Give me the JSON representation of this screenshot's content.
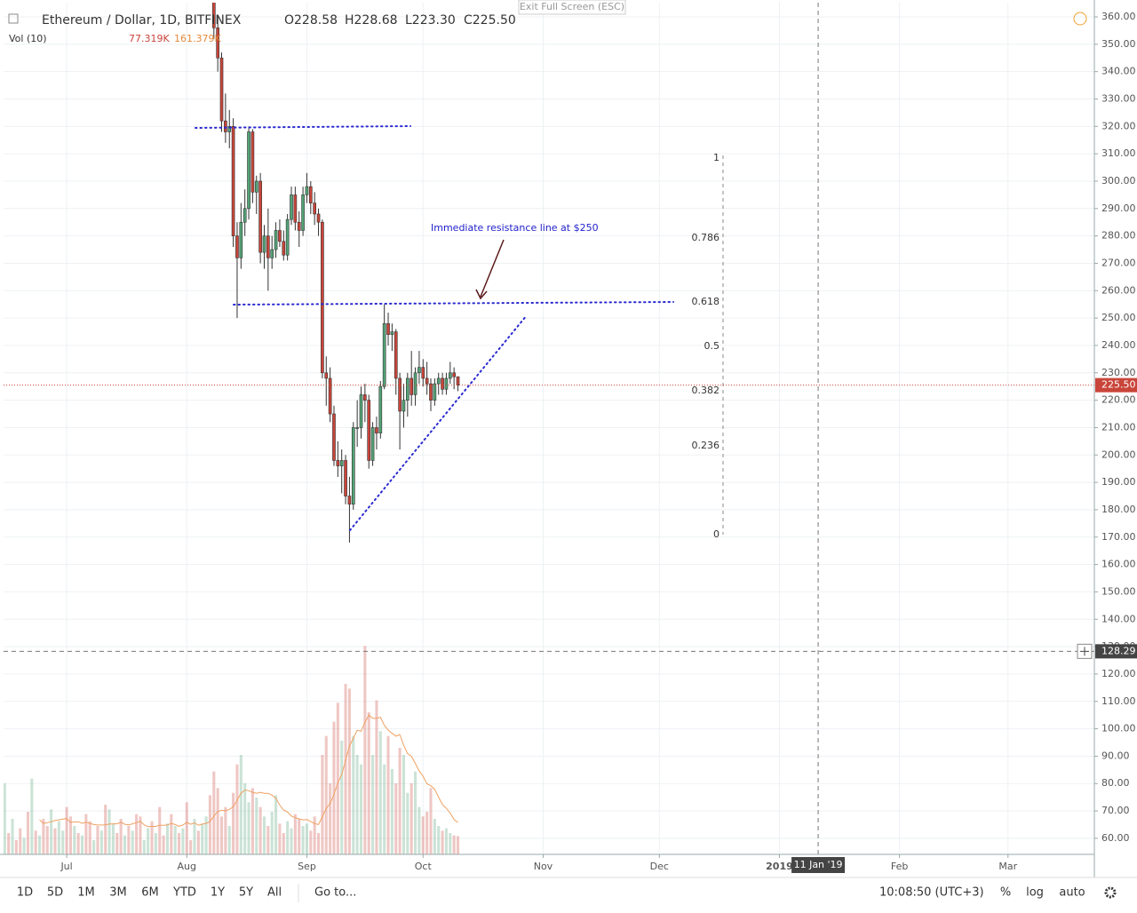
{
  "header": {
    "symbol": "Ethereum / Dollar, 1D, BITFINEX",
    "open": "O228.58",
    "high": "H228.68",
    "low": "L223.30",
    "close": "C225.50",
    "volume_label": "Vol (10)",
    "volume_value": "77.319K",
    "volume_ma_value": "161.379K",
    "exit_full_screen": "Exit Full Screen (ESC)"
  },
  "chart_data": {
    "type": "candlestick",
    "xlim": [
      -16.3,
      265.3
    ],
    "xticks": [
      {
        "value": 0,
        "label": "Jul"
      },
      {
        "value": 31,
        "label": "Aug"
      },
      {
        "value": 62,
        "label": "Sep"
      },
      {
        "value": 92,
        "label": "Oct"
      },
      {
        "value": 123,
        "label": "Nov"
      },
      {
        "value": 153,
        "label": "Dec"
      },
      {
        "value": 184,
        "label": "2019"
      },
      {
        "value": 215,
        "label": "Feb"
      },
      {
        "value": 243,
        "label": "Mar"
      }
    ],
    "ylim": [
      54.13,
      365.19
    ],
    "yticks": [
      {
        "value": 60,
        "label": "60.00"
      },
      {
        "value": 70,
        "label": "70.00"
      },
      {
        "value": 80,
        "label": "80.00"
      },
      {
        "value": 90,
        "label": "90.00"
      },
      {
        "value": 100,
        "label": "100.00"
      },
      {
        "value": 110,
        "label": "110.00"
      },
      {
        "value": 120,
        "label": "120.00"
      },
      {
        "value": 130,
        "label": "130.00"
      },
      {
        "value": 140,
        "label": "140.00"
      },
      {
        "value": 150,
        "label": "150.00"
      },
      {
        "value": 160,
        "label": "160.00"
      },
      {
        "value": 170,
        "label": "170.00"
      },
      {
        "value": 180,
        "label": "180.00"
      },
      {
        "value": 190,
        "label": "190.00"
      },
      {
        "value": 200,
        "label": "200.00"
      },
      {
        "value": 210,
        "label": "210.00"
      },
      {
        "value": 220,
        "label": "220.00"
      },
      {
        "value": 230,
        "label": "230.00"
      },
      {
        "value": 240,
        "label": "240.00"
      },
      {
        "value": 250,
        "label": "250.00"
      },
      {
        "value": 260,
        "label": "260.00"
      },
      {
        "value": 270,
        "label": "270.00"
      },
      {
        "value": 280,
        "label": "280.00"
      },
      {
        "value": 290,
        "label": "290.00"
      },
      {
        "value": 300,
        "label": "300.00"
      },
      {
        "value": 310,
        "label": "310.00"
      },
      {
        "value": 320,
        "label": "320.00"
      },
      {
        "value": 330,
        "label": "330.00"
      },
      {
        "value": 340,
        "label": "340.00"
      },
      {
        "value": 350,
        "label": "350.00"
      },
      {
        "value": 360,
        "label": "360.00"
      }
    ],
    "grid": true,
    "up_color": "#53a376",
    "down_color": "#c9453a",
    "first_day": 38,
    "candles": [
      [
        366,
        372,
        352,
        356
      ],
      [
        356,
        360,
        340,
        345
      ],
      [
        345,
        347,
        318,
        322
      ],
      [
        322,
        332,
        314,
        318
      ],
      [
        318,
        326,
        312,
        320
      ],
      [
        320,
        323,
        276,
        280
      ],
      [
        280,
        285,
        250,
        272
      ],
      [
        272,
        292,
        268,
        285
      ],
      [
        285,
        297,
        280,
        290
      ],
      [
        290,
        320,
        286,
        318
      ],
      [
        318,
        319,
        292,
        296
      ],
      [
        296,
        302,
        288,
        300
      ],
      [
        300,
        303,
        270,
        274
      ],
      [
        274,
        284,
        268,
        280
      ],
      [
        280,
        290,
        260,
        272
      ],
      [
        272,
        280,
        268,
        275
      ],
      [
        275,
        285,
        272,
        282
      ],
      [
        282,
        286,
        276,
        278
      ],
      [
        278,
        282,
        271,
        273
      ],
      [
        273,
        288,
        271,
        286
      ],
      [
        286,
        298,
        284,
        295
      ],
      [
        295,
        298,
        282,
        285
      ],
      [
        285,
        289,
        276,
        282
      ],
      [
        282,
        298,
        280,
        295
      ],
      [
        295,
        303,
        292,
        298
      ],
      [
        298,
        300,
        288,
        292
      ],
      [
        292,
        296,
        284,
        288
      ],
      [
        288,
        290,
        280,
        285
      ],
      [
        285,
        286,
        228,
        230
      ],
      [
        230,
        236,
        218,
        228
      ],
      [
        228,
        232,
        212,
        215
      ],
      [
        215,
        218,
        196,
        198
      ],
      [
        198,
        205,
        192,
        196
      ],
      [
        196,
        202,
        186,
        198
      ],
      [
        198,
        200,
        182,
        185
      ],
      [
        185,
        192,
        168,
        182
      ],
      [
        182,
        212,
        180,
        210
      ],
      [
        210,
        220,
        203,
        210
      ],
      [
        210,
        225,
        206,
        222
      ],
      [
        222,
        226,
        212,
        220
      ],
      [
        220,
        222,
        195,
        198
      ],
      [
        198,
        212,
        196,
        210
      ],
      [
        210,
        214,
        202,
        208
      ],
      [
        208,
        227,
        206,
        225
      ],
      [
        225,
        255,
        224,
        248
      ],
      [
        248,
        252,
        240,
        244
      ],
      [
        244,
        248,
        238,
        245
      ],
      [
        245,
        246,
        222,
        228
      ],
      [
        228,
        230,
        202,
        216
      ],
      [
        216,
        226,
        210,
        220
      ],
      [
        220,
        230,
        214,
        228
      ],
      [
        228,
        238,
        218,
        222
      ],
      [
        222,
        232,
        218,
        230
      ],
      [
        230,
        238,
        226,
        232
      ],
      [
        232,
        235,
        225,
        228
      ],
      [
        228,
        234,
        222,
        226
      ],
      [
        226,
        228,
        216,
        220
      ],
      [
        220,
        228,
        218,
        226
      ],
      [
        226,
        230,
        222,
        228
      ],
      [
        228,
        230,
        222,
        224
      ],
      [
        224,
        230,
        222,
        228
      ],
      [
        228,
        234,
        226,
        230
      ],
      [
        230,
        232,
        224,
        228.58
      ],
      [
        228.58,
        228.68,
        223.3,
        225.5
      ]
    ],
    "volume_first_day": -16,
    "volume_max": 900,
    "volume_ma_length": 10,
    "volume_ma_color": "#f0a060",
    "early_volume_up": [
      1,
      0,
      1,
      0,
      0,
      1,
      0,
      1,
      0,
      1,
      0,
      0,
      1,
      0,
      1,
      1,
      0,
      0,
      1,
      0,
      1,
      0,
      0,
      1,
      0,
      1,
      0,
      1,
      1,
      0,
      0,
      1,
      0,
      1,
      0,
      0,
      1,
      1,
      0,
      1,
      0,
      0,
      1,
      0,
      1,
      0,
      1,
      0,
      0,
      1,
      0,
      1,
      1,
      0
    ],
    "volumes": [
      300,
      90,
      150,
      60,
      110,
      70,
      180,
      320,
      100,
      80,
      150,
      120,
      190,
      110,
      140,
      100,
      200,
      160,
      120,
      90,
      80,
      170,
      140,
      60,
      120,
      100,
      210,
      190,
      130,
      90,
      150,
      80,
      120,
      100,
      170,
      160,
      60,
      110,
      140,
      90,
      200,
      80,
      130,
      170,
      120,
      90,
      110,
      220,
      60,
      150,
      100,
      130,
      160,
      250,
      350,
      280,
      160,
      200,
      120,
      260,
      380,
      420,
      300,
      220,
      280,
      240,
      200,
      160,
      120,
      180,
      250,
      130,
      90,
      140,
      110,
      170,
      150,
      120,
      130,
      100,
      160,
      90,
      420,
      500,
      300,
      560,
      640,
      480,
      720,
      700,
      500,
      420,
      380,
      880,
      600,
      420,
      650,
      520,
      380,
      500,
      360,
      300,
      450,
      420,
      260,
      300,
      350,
      200,
      160,
      180,
      280,
      150,
      120,
      100,
      110,
      90,
      80,
      77.319
    ],
    "last_price": {
      "value": 225.5,
      "label": "225.50"
    },
    "crosshair": {
      "price": 128.29,
      "date_label": "11 Jan '19",
      "day": 194
    },
    "annotation": "Immediate resistance line at $250",
    "fib_levels": [
      1,
      0.786,
      0.618,
      0.5,
      0.382,
      0.236,
      0
    ]
  },
  "toolbar": {
    "ranges": [
      "1D",
      "5D",
      "1M",
      "3M",
      "6M",
      "YTD",
      "1Y",
      "5Y",
      "All"
    ],
    "goto": "Go to...",
    "clock": "10:08:50 (UTC+3)",
    "percent": "%",
    "log": "log",
    "auto": "auto"
  }
}
